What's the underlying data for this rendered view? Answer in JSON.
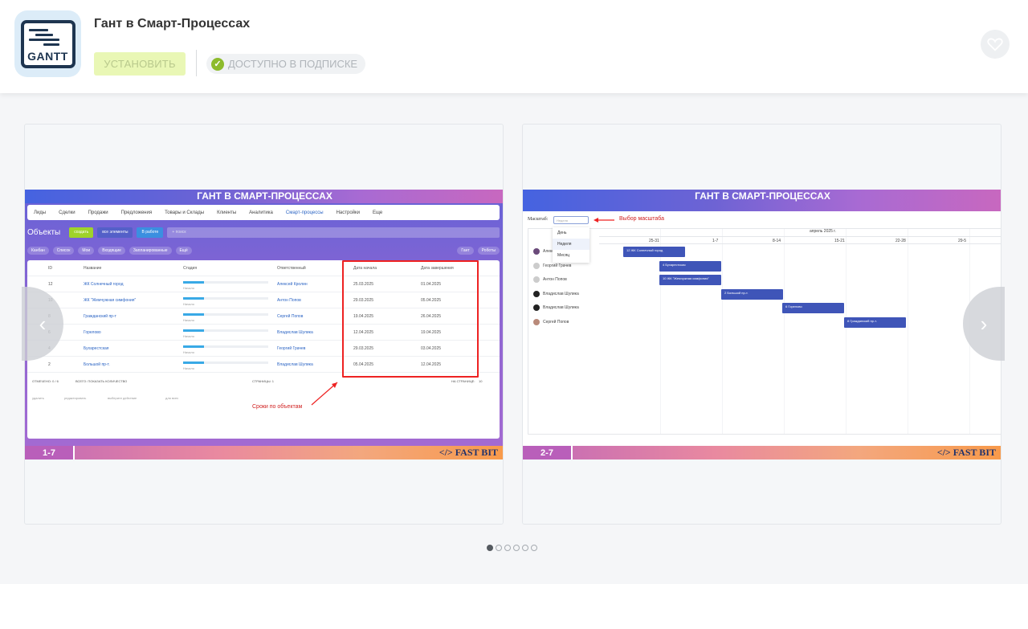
{
  "header": {
    "app_title": "Гант в Смарт-Процессах",
    "icon_label": "GANTT",
    "install_label": "УСТАНОВИТЬ",
    "subscription_label": "ДОСТУПНО В ПОДПИСКЕ",
    "favorite_icon": "heart-icon",
    "colors": {
      "install_bg": "#e9f7b5",
      "check": "#8dbb2c"
    }
  },
  "slides": [
    {
      "banner": "ГАНТ В СМАРТ-ПРОЦЕССАХ",
      "counter": "1-7",
      "brand": "</> FAST BIT",
      "crm": {
        "nav": [
          "Лиды",
          "Сделки",
          "Продажи",
          "Предложения",
          "Товары и Склады",
          "Клиенты",
          "Аналитика",
          "Смарт-процессы",
          "Настройки",
          "Еще"
        ],
        "title": "Объекты",
        "create": "создать",
        "filter_all": "все элементы",
        "filter_chip": "В работе",
        "search_placeholder": "+ поиск",
        "view_tabs": [
          "Канбан",
          "Список",
          "Мои",
          "Входящие",
          "Запланированные",
          "Ещё"
        ],
        "gantt_btn": "Гант",
        "robots_btn": "Роботы",
        "columns": [
          "ID",
          "Название",
          "Стадия",
          "Ответственный",
          "Дата начала",
          "Дата завершения"
        ],
        "rows": [
          {
            "id": "12",
            "name": "ЖК Солнечный город",
            "stage": "Начало",
            "owner": "Алексей Кролин",
            "start": "25.03.2025",
            "end": "01.04.2025"
          },
          {
            "id": "10",
            "name": "ЖК \"Жемчужная симфония\"",
            "stage": "Начало",
            "owner": "Антон Попов",
            "start": "29.03.2025",
            "end": "05.04.2025"
          },
          {
            "id": "8",
            "name": "Гражданский пр-т",
            "stage": "Начало",
            "owner": "Сергей Попов",
            "start": "19.04.2025",
            "end": "26.04.2025"
          },
          {
            "id": "6",
            "name": "Горелово",
            "stage": "Начало",
            "owner": "Владислав Шулика",
            "start": "12.04.2025",
            "end": "19.04.2025"
          },
          {
            "id": "4",
            "name": "Бухарестская",
            "stage": "Начало",
            "owner": "Георгий Грачев",
            "start": "29.03.2025",
            "end": "03.04.2025"
          },
          {
            "id": "2",
            "name": "Большой пр-т.",
            "stage": "Начало",
            "owner": "Владислав Шулика",
            "start": "05.04.2025",
            "end": "12.04.2025"
          }
        ],
        "footer_marked": "ОТМЕЧЕНО: 0 / 6",
        "footer_total": "ВСЕГО: ПОКАЗАТЬ КОЛИЧЕСТВО",
        "footer_pages": "СТРАНИЦЫ: 1",
        "footer_per_page": "НА СТРАНИЦЕ:",
        "per_page_value": "10",
        "action_delete": "удалить",
        "action_edit": "редактировать",
        "action_select": "выберите действие",
        "action_all": "для всех"
      },
      "annotation": "Сроки по объектам"
    },
    {
      "banner": "ГАНТ В СМАРТ-ПРОЦЕССАХ",
      "counter": "2-7",
      "brand": "</> FAST BIT",
      "gantt": {
        "scale_label": "Масштаб:",
        "scale_placeholder": "Неделя",
        "scale_options": [
          "День",
          "Неделя",
          "Месяц"
        ],
        "annotation": "Выбор масштаба",
        "month": "апрель 2025 г.",
        "weeks": [
          "25-31",
          "1-7",
          "8-14",
          "15-21",
          "22-28",
          "29-5"
        ],
        "people": [
          "Алексей Кролин",
          "Георгий Грачев",
          "Антон Попов",
          "Владислав Шулика",
          "Владислав Шулика",
          "Сергей Попов"
        ],
        "bars": [
          "12 ЖК Солнечный город",
          "4 Бухарестская",
          "10 ЖК \"Жемчужная симфония\"",
          "2 Большой пр-т.",
          "6 Горелово",
          "8 Гражданский пр-т."
        ]
      }
    }
  ],
  "carousel": {
    "dot_count": 6,
    "active_dot": 1
  }
}
